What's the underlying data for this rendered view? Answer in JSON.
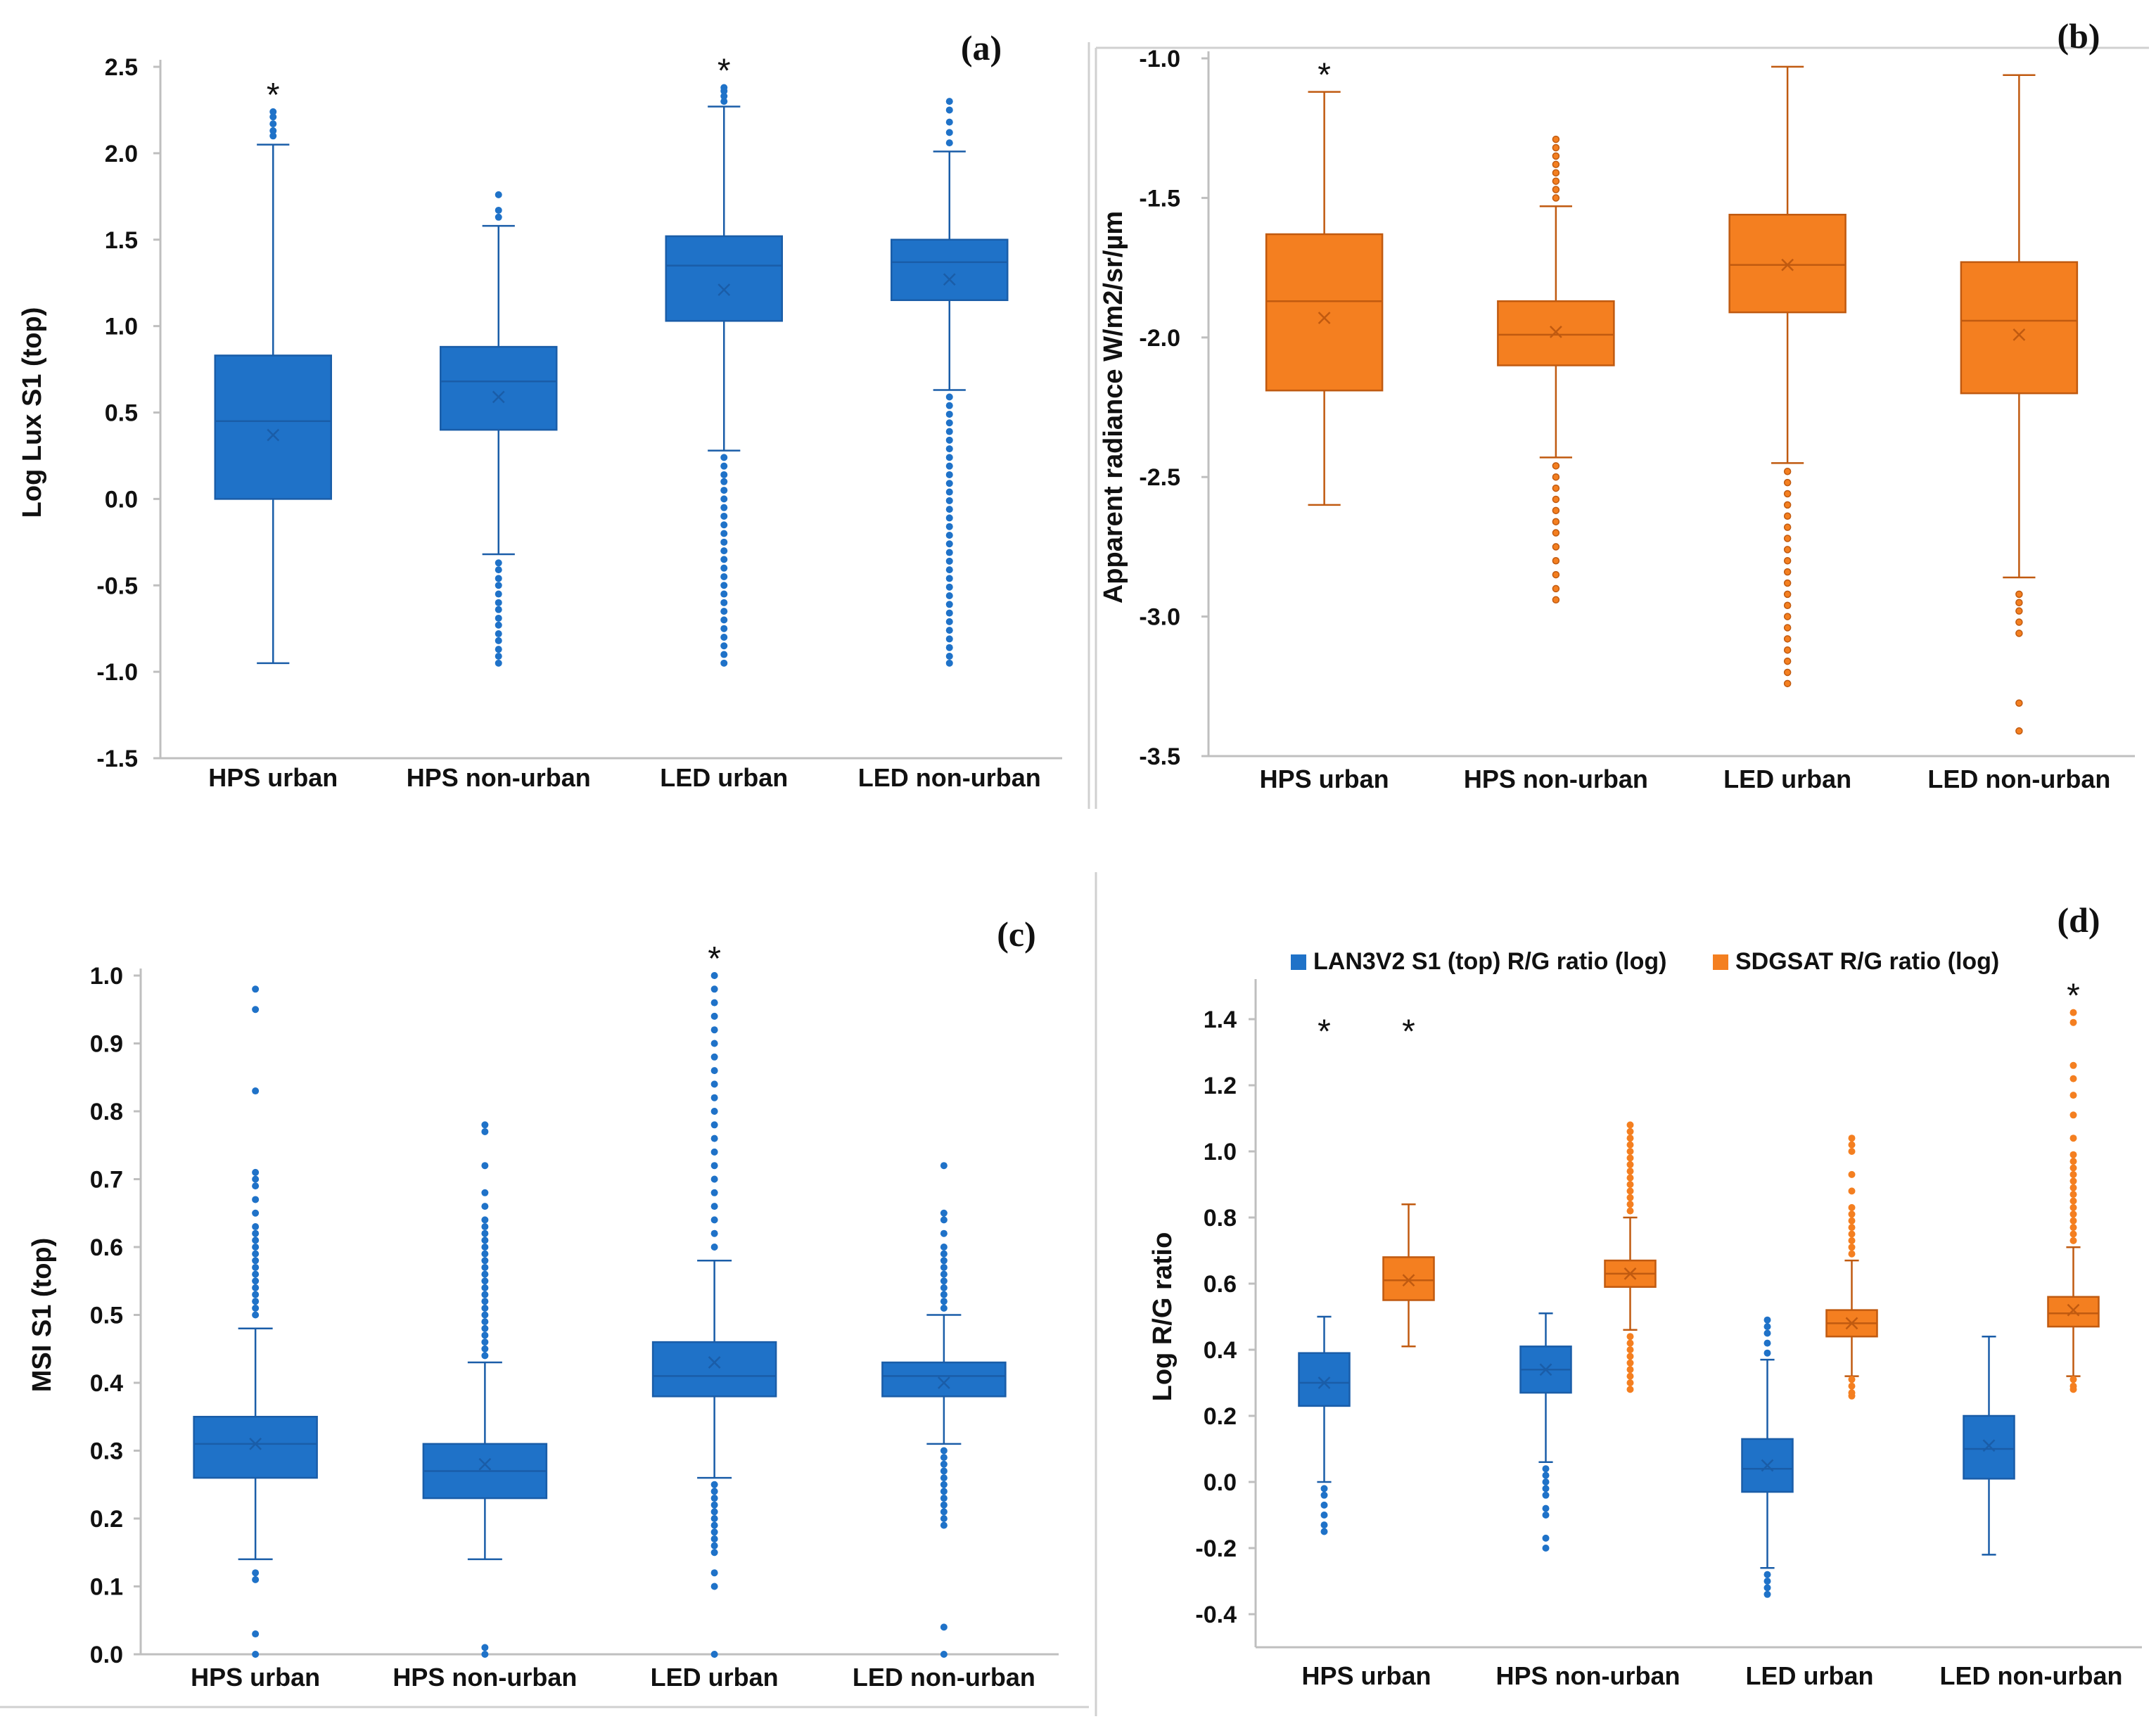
{
  "figure": {
    "id": "boxplot-figure"
  },
  "chart_data": [
    {
      "type": "boxplot",
      "panel": "(a)",
      "ylabel": "Log Lux S1 (top)",
      "ylim": [
        -1.5,
        2.5
      ],
      "yticks": [
        -1.5,
        -1.0,
        -0.5,
        0.0,
        0.5,
        1.0,
        1.5,
        2.0,
        2.5
      ],
      "ytick_labels": [
        "-1.5",
        "-1.0",
        "-0.5",
        "0.0",
        "0.5",
        "1.0",
        "1.5",
        "2.0",
        "2.5"
      ],
      "categories": [
        "HPS urban",
        "HPS non-urban",
        "LED urban",
        "LED non-urban"
      ],
      "series": [
        {
          "name": "Log Lux S1 (top)",
          "color": "#1f72c8",
          "edge": "#1a5da8",
          "outlier_style": "filled",
          "boxes": [
            {
              "q1": 0.0,
              "median": 0.45,
              "q3": 0.83,
              "mean": 0.37,
              "whisker_low": -0.95,
              "whisker_high": 2.05,
              "outliers": [
                2.1,
                2.13,
                2.17,
                2.21,
                2.24
              ],
              "star": true
            },
            {
              "q1": 0.4,
              "median": 0.68,
              "q3": 0.88,
              "mean": 0.59,
              "whisker_low": -0.32,
              "whisker_high": 1.58,
              "outliers": [
                1.63,
                1.67,
                1.76,
                -0.37,
                -0.41,
                -0.46,
                -0.5,
                -0.55,
                -0.6,
                -0.64,
                -0.69,
                -0.73,
                -0.78,
                -0.82,
                -0.87,
                -0.91,
                -0.95
              ]
            },
            {
              "q1": 1.03,
              "median": 1.35,
              "q3": 1.52,
              "mean": 1.21,
              "whisker_low": 0.28,
              "whisker_high": 2.27,
              "outliers": [
                2.3,
                2.33,
                2.36,
                2.38,
                0.24,
                0.19,
                0.14,
                0.1,
                0.05,
                0.0,
                -0.05,
                -0.1,
                -0.15,
                -0.2,
                -0.25,
                -0.3,
                -0.35,
                -0.4,
                -0.45,
                -0.5,
                -0.55,
                -0.6,
                -0.65,
                -0.7,
                -0.75,
                -0.8,
                -0.85,
                -0.9,
                -0.95
              ],
              "star": true
            },
            {
              "q1": 1.15,
              "median": 1.37,
              "q3": 1.5,
              "mean": 1.27,
              "whisker_low": 0.63,
              "whisker_high": 2.01,
              "outliers": [
                2.06,
                2.12,
                2.18,
                2.25,
                2.3,
                0.59,
                0.54,
                0.49,
                0.44,
                0.39,
                0.34,
                0.29,
                0.24,
                0.19,
                0.14,
                0.09,
                0.04,
                -0.01,
                -0.06,
                -0.11,
                -0.16,
                -0.21,
                -0.26,
                -0.31,
                -0.36,
                -0.41,
                -0.46,
                -0.51,
                -0.56,
                -0.61,
                -0.66,
                -0.71,
                -0.76,
                -0.81,
                -0.86,
                -0.91,
                -0.95
              ]
            }
          ]
        }
      ]
    },
    {
      "type": "boxplot",
      "panel": "(b)",
      "ylabel": "Apparent radiance W/m2/sr/µm",
      "ylim": [
        -3.5,
        -1.0
      ],
      "yticks": [
        -3.5,
        -3.0,
        -2.5,
        -2.0,
        -1.5,
        -1.0
      ],
      "ytick_labels": [
        "-3.5",
        "-3.0",
        "-2.5",
        "-2.0",
        "-1.5",
        "-1.0"
      ],
      "categories": [
        "HPS urban",
        "HPS non-urban",
        "LED urban",
        "LED non-urban"
      ],
      "series": [
        {
          "name": "Apparent radiance",
          "color": "#f47f20",
          "edge": "#c05a10",
          "outlier_style": "hollow",
          "boxes": [
            {
              "q1": -2.19,
              "median": -1.87,
              "q3": -1.63,
              "mean": -1.93,
              "whisker_low": -2.6,
              "whisker_high": -1.12,
              "outliers": [],
              "star": true
            },
            {
              "q1": -2.1,
              "median": -1.99,
              "q3": -1.87,
              "mean": -1.98,
              "whisker_low": -2.43,
              "whisker_high": -1.53,
              "outliers": [
                -1.5,
                -1.47,
                -1.44,
                -1.41,
                -1.38,
                -1.35,
                -1.32,
                -1.29,
                -2.46,
                -2.5,
                -2.54,
                -2.58,
                -2.62,
                -2.66,
                -2.7,
                -2.75,
                -2.8,
                -2.85,
                -2.9,
                -2.94
              ]
            },
            {
              "q1": -1.91,
              "median": -1.74,
              "q3": -1.56,
              "mean": -1.74,
              "whisker_low": -2.45,
              "whisker_high": -1.03,
              "outliers": [
                -2.48,
                -2.52,
                -2.56,
                -2.6,
                -2.64,
                -2.68,
                -2.72,
                -2.76,
                -2.8,
                -2.84,
                -2.88,
                -2.92,
                -2.96,
                -3.0,
                -3.04,
                -3.08,
                -3.12,
                -3.16,
                -3.2,
                -3.24
              ]
            },
            {
              "q1": -2.2,
              "median": -1.94,
              "q3": -1.73,
              "mean": -1.99,
              "whisker_low": -2.86,
              "whisker_high": -1.06,
              "outliers": [
                -2.92,
                -2.95,
                -2.98,
                -3.02,
                -3.06,
                -3.31,
                -3.41
              ]
            }
          ]
        }
      ]
    },
    {
      "type": "boxplot",
      "panel": "(c)",
      "ylabel": "MSI S1 (top)",
      "ylim": [
        0.0,
        1.0
      ],
      "yticks": [
        0.0,
        0.1,
        0.2,
        0.3,
        0.4,
        0.5,
        0.6,
        0.7,
        0.8,
        0.9,
        1.0
      ],
      "ytick_labels": [
        "0.0",
        "0.1",
        "0.2",
        "0.3",
        "0.4",
        "0.5",
        "0.6",
        "0.7",
        "0.8",
        "0.9",
        "1.0"
      ],
      "categories": [
        "HPS urban",
        "HPS non-urban",
        "LED urban",
        "LED non-urban"
      ],
      "series": [
        {
          "name": "MSI S1 (top)",
          "color": "#1f72c8",
          "edge": "#1a5da8",
          "outlier_style": "filled",
          "boxes": [
            {
              "q1": 0.26,
              "median": 0.31,
              "q3": 0.35,
              "mean": 0.31,
              "whisker_low": 0.14,
              "whisker_high": 0.48,
              "outliers": [
                0.5,
                0.51,
                0.52,
                0.53,
                0.54,
                0.55,
                0.56,
                0.57,
                0.58,
                0.59,
                0.6,
                0.61,
                0.62,
                0.63,
                0.65,
                0.67,
                0.69,
                0.7,
                0.71,
                0.83,
                0.95,
                0.98,
                0.12,
                0.11,
                0.03,
                0.0
              ]
            },
            {
              "q1": 0.23,
              "median": 0.27,
              "q3": 0.31,
              "mean": 0.28,
              "whisker_low": 0.14,
              "whisker_high": 0.43,
              "outliers": [
                0.44,
                0.45,
                0.46,
                0.47,
                0.48,
                0.49,
                0.5,
                0.51,
                0.52,
                0.53,
                0.54,
                0.55,
                0.56,
                0.57,
                0.58,
                0.59,
                0.6,
                0.61,
                0.62,
                0.63,
                0.64,
                0.66,
                0.68,
                0.72,
                0.77,
                0.78,
                0.01,
                0.0
              ]
            },
            {
              "q1": 0.38,
              "median": 0.41,
              "q3": 0.46,
              "mean": 0.43,
              "whisker_low": 0.26,
              "whisker_high": 0.58,
              "outliers": [
                0.6,
                0.62,
                0.64,
                0.66,
                0.68,
                0.7,
                0.72,
                0.74,
                0.76,
                0.78,
                0.8,
                0.82,
                0.84,
                0.86,
                0.88,
                0.9,
                0.92,
                0.94,
                0.96,
                0.98,
                1.0,
                0.25,
                0.24,
                0.23,
                0.22,
                0.21,
                0.2,
                0.19,
                0.18,
                0.17,
                0.16,
                0.15,
                0.12,
                0.1,
                0.0
              ],
              "star": true
            },
            {
              "q1": 0.38,
              "median": 0.41,
              "q3": 0.43,
              "mean": 0.4,
              "whisker_low": 0.31,
              "whisker_high": 0.5,
              "outliers": [
                0.51,
                0.52,
                0.53,
                0.54,
                0.55,
                0.56,
                0.57,
                0.58,
                0.59,
                0.6,
                0.62,
                0.64,
                0.65,
                0.72,
                0.3,
                0.29,
                0.28,
                0.27,
                0.26,
                0.25,
                0.24,
                0.23,
                0.22,
                0.21,
                0.2,
                0.19,
                0.04,
                0.0
              ]
            }
          ]
        }
      ]
    },
    {
      "type": "boxplot",
      "panel": "(d)",
      "ylabel": "Log R/G ratio",
      "ylim": [
        -0.5,
        1.5
      ],
      "yticks": [
        -0.4,
        -0.2,
        0.0,
        0.2,
        0.4,
        0.6,
        0.8,
        1.0,
        1.2,
        1.4
      ],
      "ytick_labels": [
        "-0.4",
        "-0.2",
        "0.0",
        "0.2",
        "0.4",
        "0.6",
        "0.8",
        "1.0",
        "1.2",
        "1.4"
      ],
      "categories": [
        "HPS urban",
        "HPS non-urban",
        "LED urban",
        "LED non-urban"
      ],
      "series": [
        {
          "name": "LAN3V2 S1 (top) R/G ratio (log)",
          "color": "#1f72c8",
          "edge": "#1a5da8",
          "outlier_style": "filled",
          "boxes": [
            {
              "q1": 0.23,
              "median": 0.3,
              "q3": 0.39,
              "mean": 0.3,
              "whisker_low": 0.0,
              "whisker_high": 0.5,
              "outliers": [
                -0.02,
                -0.04,
                -0.07,
                -0.1,
                -0.13,
                -0.15
              ],
              "star": true
            },
            {
              "q1": 0.27,
              "median": 0.34,
              "q3": 0.41,
              "mean": 0.34,
              "whisker_low": 0.06,
              "whisker_high": 0.51,
              "outliers": [
                0.04,
                0.02,
                0.0,
                -0.02,
                -0.04,
                -0.08,
                -0.1,
                -0.17,
                -0.2
              ]
            },
            {
              "q1": -0.03,
              "median": 0.04,
              "q3": 0.13,
              "mean": 0.05,
              "whisker_low": -0.26,
              "whisker_high": 0.37,
              "outliers": [
                0.39,
                0.42,
                0.45,
                0.47,
                0.49,
                -0.28,
                -0.3,
                -0.32,
                -0.34
              ]
            },
            {
              "q1": 0.01,
              "median": 0.1,
              "q3": 0.2,
              "mean": 0.11,
              "whisker_low": -0.22,
              "whisker_high": 0.44,
              "outliers": []
            }
          ]
        },
        {
          "name": "SDGSAT R/G ratio (log)",
          "color": "#f47f20",
          "edge": "#c05a10",
          "outlier_style": "filled",
          "boxes": [
            {
              "q1": 0.55,
              "median": 0.61,
              "q3": 0.68,
              "mean": 0.61,
              "whisker_low": 0.41,
              "whisker_high": 0.84,
              "outliers": [],
              "star": true
            },
            {
              "q1": 0.59,
              "median": 0.63,
              "q3": 0.67,
              "mean": 0.63,
              "whisker_low": 0.46,
              "whisker_high": 0.8,
              "outliers": [
                0.82,
                0.84,
                0.86,
                0.88,
                0.9,
                0.92,
                0.94,
                0.96,
                0.98,
                1.0,
                1.02,
                1.04,
                1.06,
                1.08,
                0.44,
                0.42,
                0.4,
                0.38,
                0.36,
                0.34,
                0.32,
                0.3,
                0.28
              ]
            },
            {
              "q1": 0.44,
              "median": 0.48,
              "q3": 0.52,
              "mean": 0.48,
              "whisker_low": 0.32,
              "whisker_high": 0.67,
              "outliers": [
                0.69,
                0.71,
                0.73,
                0.75,
                0.77,
                0.79,
                0.81,
                0.83,
                0.88,
                0.93,
                1.0,
                1.02,
                1.04,
                0.31,
                0.29,
                0.27,
                0.26
              ]
            },
            {
              "q1": 0.47,
              "median": 0.51,
              "q3": 0.56,
              "mean": 0.52,
              "whisker_low": 0.32,
              "whisker_high": 0.71,
              "outliers": [
                0.73,
                0.75,
                0.77,
                0.79,
                0.81,
                0.83,
                0.85,
                0.87,
                0.89,
                0.91,
                0.93,
                0.95,
                0.97,
                0.99,
                1.04,
                1.11,
                1.17,
                1.22,
                1.26,
                1.39,
                1.42,
                0.31,
                0.29,
                0.28
              ],
              "star": true
            }
          ]
        }
      ],
      "legend": {
        "placement": "top",
        "entries": [
          "LAN3V2 S1 (top) R/G ratio (log)",
          "SDGSAT R/G ratio (log)"
        ]
      }
    }
  ]
}
